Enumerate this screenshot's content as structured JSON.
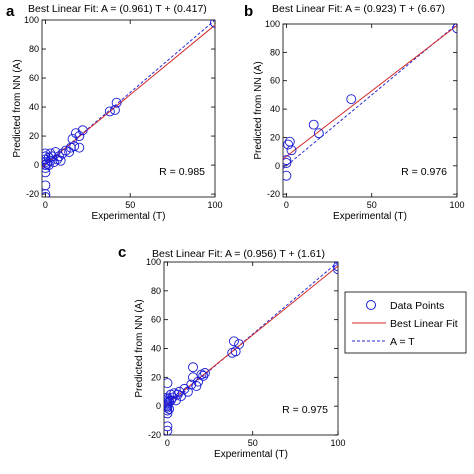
{
  "colors": {
    "points": "#1a1ad6",
    "fit": "#d42a2a",
    "identity": "#2a2ad6",
    "axes": "#000000"
  },
  "legend": {
    "placement": "right of panel c",
    "items": [
      {
        "label": "Data Points",
        "style": "circle-marker"
      },
      {
        "label": "Best Linear Fit",
        "style": "solid-red-line"
      },
      {
        "label": "A = T",
        "style": "dashed-blue-line"
      }
    ]
  },
  "chart_data": [
    {
      "panel": "a",
      "type": "scatter",
      "title": "Best Linear Fit:  A = (0.961) T + (0.417)",
      "xlabel": "Experimental (T)",
      "ylabel": "Predicted from NN (A)",
      "xlim": [
        -2,
        100
      ],
      "ylim": [
        -22,
        100
      ],
      "xticks": [
        0,
        50,
        100
      ],
      "yticks": [
        -20,
        0,
        20,
        40,
        60,
        80,
        100
      ],
      "grid": false,
      "fit": {
        "slope": 0.961,
        "intercept": 0.417
      },
      "r_text": "R = 0.985",
      "points": [
        [
          0,
          -5
        ],
        [
          0,
          -2
        ],
        [
          0,
          0
        ],
        [
          0,
          2
        ],
        [
          0,
          4
        ],
        [
          0,
          6
        ],
        [
          0,
          8
        ],
        [
          0,
          -14
        ],
        [
          0,
          -20
        ],
        [
          0,
          -22
        ],
        [
          1,
          1
        ],
        [
          2,
          0
        ],
        [
          2,
          5
        ],
        [
          3,
          8
        ],
        [
          3,
          3
        ],
        [
          4,
          6
        ],
        [
          5,
          2
        ],
        [
          6,
          9
        ],
        [
          7,
          4
        ],
        [
          8,
          6
        ],
        [
          9,
          3
        ],
        [
          10,
          8
        ],
        [
          12,
          10
        ],
        [
          14,
          9
        ],
        [
          15,
          12
        ],
        [
          16,
          18
        ],
        [
          17,
          13
        ],
        [
          18,
          22
        ],
        [
          20,
          20
        ],
        [
          20,
          12
        ],
        [
          22,
          24
        ],
        [
          38,
          37
        ],
        [
          41,
          38
        ],
        [
          42,
          43
        ],
        [
          100,
          98
        ]
      ]
    },
    {
      "panel": "b",
      "type": "scatter",
      "title": "Best Linear Fit:  A = (0.923) T + (6.67)",
      "xlabel": "Experimental (T)",
      "ylabel": "Predicted from NN (A)",
      "xlim": [
        -2,
        100
      ],
      "ylim": [
        -22,
        100
      ],
      "xticks": [
        0,
        50,
        100
      ],
      "yticks": [
        -20,
        0,
        20,
        40,
        60,
        80,
        100
      ],
      "grid": false,
      "fit": {
        "slope": 0.923,
        "intercept": 6.67
      },
      "r_text": "R = 0.976",
      "points": [
        [
          0,
          -7
        ],
        [
          0,
          2
        ],
        [
          0,
          4
        ],
        [
          1,
          15
        ],
        [
          2,
          17
        ],
        [
          3,
          11
        ],
        [
          16,
          29
        ],
        [
          19,
          23
        ],
        [
          38,
          47
        ],
        [
          100,
          97
        ]
      ]
    },
    {
      "panel": "c",
      "type": "scatter",
      "title": "Best Linear Fit:  A = (0.956) T + (1.61)",
      "xlabel": "Experimental (T)",
      "ylabel": "Predicted from NN (A)",
      "xlim": [
        -2,
        100
      ],
      "ylim": [
        -20,
        100
      ],
      "xticks": [
        0,
        50,
        100
      ],
      "yticks": [
        -20,
        0,
        20,
        40,
        60,
        80,
        100
      ],
      "grid": false,
      "fit": {
        "slope": 0.956,
        "intercept": 1.61
      },
      "r_text": "R = 0.975",
      "points": [
        [
          0,
          -5
        ],
        [
          0,
          -3
        ],
        [
          0,
          -1
        ],
        [
          0,
          0
        ],
        [
          0,
          1
        ],
        [
          0,
          2
        ],
        [
          0,
          3
        ],
        [
          0,
          4
        ],
        [
          0,
          5
        ],
        [
          0,
          6
        ],
        [
          0,
          -14
        ],
        [
          0,
          -17
        ],
        [
          1,
          -2
        ],
        [
          1,
          3
        ],
        [
          2,
          8
        ],
        [
          2,
          4
        ],
        [
          0,
          16
        ],
        [
          3,
          6
        ],
        [
          4,
          9
        ],
        [
          5,
          4
        ],
        [
          6,
          8
        ],
        [
          7,
          10
        ],
        [
          8,
          7
        ],
        [
          10,
          12
        ],
        [
          12,
          10
        ],
        [
          14,
          15
        ],
        [
          15,
          20
        ],
        [
          15,
          27
        ],
        [
          17,
          14
        ],
        [
          18,
          17
        ],
        [
          20,
          22
        ],
        [
          21,
          21
        ],
        [
          22,
          23
        ],
        [
          38,
          37
        ],
        [
          39,
          45
        ],
        [
          40,
          38
        ],
        [
          42,
          43
        ],
        [
          100,
          97
        ],
        [
          100,
          95
        ]
      ]
    }
  ]
}
